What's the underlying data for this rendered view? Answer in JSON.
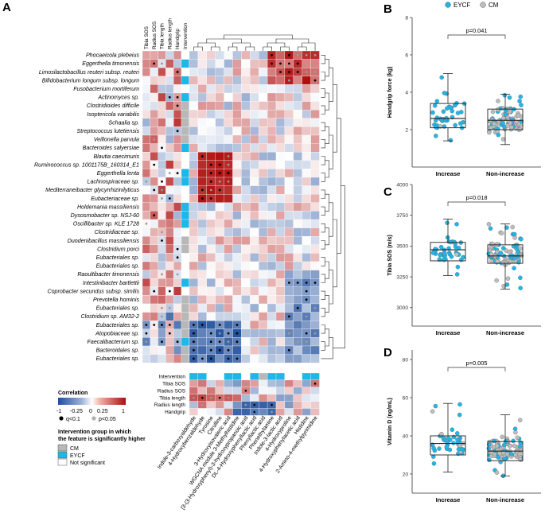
{
  "panels": {
    "a": "A",
    "b": "B",
    "c": "C",
    "d": "D"
  },
  "colors": {
    "eycf": "#1fb6e8",
    "cm": "#bdbdbd",
    "neg": "#1f4e9c",
    "pos": "#b01010",
    "grey_strip": "#b8b8b8"
  },
  "heatmap": {
    "top_columns": [
      "Tibia SOS",
      "Radius SOS",
      "Tibia length",
      "Radius length",
      "Handgrip",
      "Intervention"
    ],
    "rows": [
      "Phocaeicola plebeius",
      "Eggerthella timonensis",
      "Limosilactobacillus reuteri subsp. reuteri",
      "Bifidobacterium longum subsp. longum",
      "Fusobacterium mortiferum",
      "Actinomyces sp.",
      "Clostridioides difficile",
      "Isoptericola variabilis",
      "Schaalia sp.",
      "Streptococcus lutetiensis",
      "Veillonella parvula",
      "Bacteroides salyersiae",
      "Blautia caecimuris",
      "Ruminococcus sp. 1001175B_160314_E1",
      "Eggerthella lenta",
      "Lachnospiraceae sp.",
      "Mediterraneibacter glycyrrhizinilyticus",
      "Eubacteriaceae sp.",
      "Holdemania massiliensis",
      "Dysosmobacter sp. NSJ-60",
      "Oscillibacter sp. KLE 1728",
      "Clostridiaceae sp.",
      "Duodenibacillus massiliensis",
      "Clostridium porci",
      "Eubacteriales sp.",
      "Eubacteriales sp.",
      "Raoultibacter timonensis",
      "Intestinibacter bartlettii",
      "Coprobacter secundus subsp. similis",
      "Prevotella hominis",
      "Eubacteriales sp.",
      "Clostridium sp. AM32-2",
      "Eubacteriales sp.",
      "Atopobiaceae sp.",
      "Faecalibacterium sp.",
      "Bacteroidales sp.",
      "Eubacteriales sp."
    ],
    "bottom_rows": [
      "Intervention",
      "Tibia SOS",
      "Radius SOS",
      "Tibia length",
      "Radius length",
      "Handgrip"
    ],
    "metabolites": [
      "Indole-3-carboxyaldehyde",
      "4-Hydroxybenzaldehyde",
      "Tyrosine",
      "Citrulline",
      "3-Hydroxyisovaleric acid",
      "WGCNA module 3-Methylhistidine",
      "[3-(3-Hydroxyphenyl)-3-hydroxypropanoic acid",
      "DL-4-Hydroxyphenyllactic acid",
      "Phenyllactic acid",
      "Phenethylamine",
      "Indole-3-lactic acid",
      "4-Hydroxyproline",
      "4-Hydroxyphenylacetic acid",
      "Histidine",
      "2-Amino-4-methylpyrimidine"
    ]
  },
  "legend": {
    "title": "Correlation",
    "ticks": [
      "-1",
      "-0.25",
      "0",
      "0.25",
      "1"
    ],
    "q_label": "q<0.1",
    "p_label": "p<0.05",
    "group_title_line1": "Intervention group in which",
    "group_title_line2": "the feature is significantly higher",
    "groups": [
      "CM",
      "EYCF",
      "Not significant"
    ]
  },
  "chart_data": [
    {
      "type": "scatter",
      "panel": "B",
      "ylabel": "Handgrip force (kg)",
      "categories": [
        "Increase",
        "Non-increase"
      ],
      "ylim": [
        0,
        8
      ],
      "yticks": [
        2,
        4,
        6,
        8
      ],
      "legend": [
        "EYCF",
        "CM"
      ],
      "p_value": "p=0.041",
      "boxes": [
        {
          "category": "Increase",
          "whisker_low": 1.4,
          "q1": 2.1,
          "median": 2.6,
          "q3": 3.4,
          "whisker_high": 5.0
        },
        {
          "category": "Non-increase",
          "whisker_low": 1.2,
          "q1": 2.0,
          "median": 2.5,
          "q3": 3.1,
          "whisker_high": 3.9
        }
      ]
    },
    {
      "type": "scatter",
      "panel": "C",
      "ylabel": "Tibia SOS (m/s)",
      "categories": [
        "Increase",
        "Non-increase"
      ],
      "ylim": [
        2850,
        4000
      ],
      "yticks": [
        3000,
        3250,
        3500,
        3750,
        4000
      ],
      "legend": [
        "EYCF",
        "CM"
      ],
      "p_value": "p=0.018",
      "boxes": [
        {
          "category": "Increase",
          "whisker_low": 3260,
          "q1": 3380,
          "median": 3470,
          "q3": 3530,
          "whisker_high": 3720
        },
        {
          "category": "Non-increase",
          "whisker_low": 3150,
          "q1": 3360,
          "median": 3420,
          "q3": 3510,
          "whisker_high": 3680
        }
      ]
    },
    {
      "type": "scatter",
      "panel": "D",
      "ylabel": "Vitamin D (ng/mL)",
      "categories": [
        "Increase",
        "Non-increase"
      ],
      "ylim": [
        10,
        85
      ],
      "yticks": [
        20,
        40,
        60,
        80
      ],
      "legend": [
        "EYCF",
        "CM"
      ],
      "p_value": "p=0.005",
      "boxes": [
        {
          "category": "Increase",
          "whisker_low": 21,
          "q1": 30,
          "median": 36,
          "q3": 40,
          "whisker_high": 57
        },
        {
          "category": "Non-increase",
          "whisker_low": 19,
          "q1": 27,
          "median": 32,
          "q3": 37,
          "whisker_high": 51
        }
      ]
    }
  ]
}
